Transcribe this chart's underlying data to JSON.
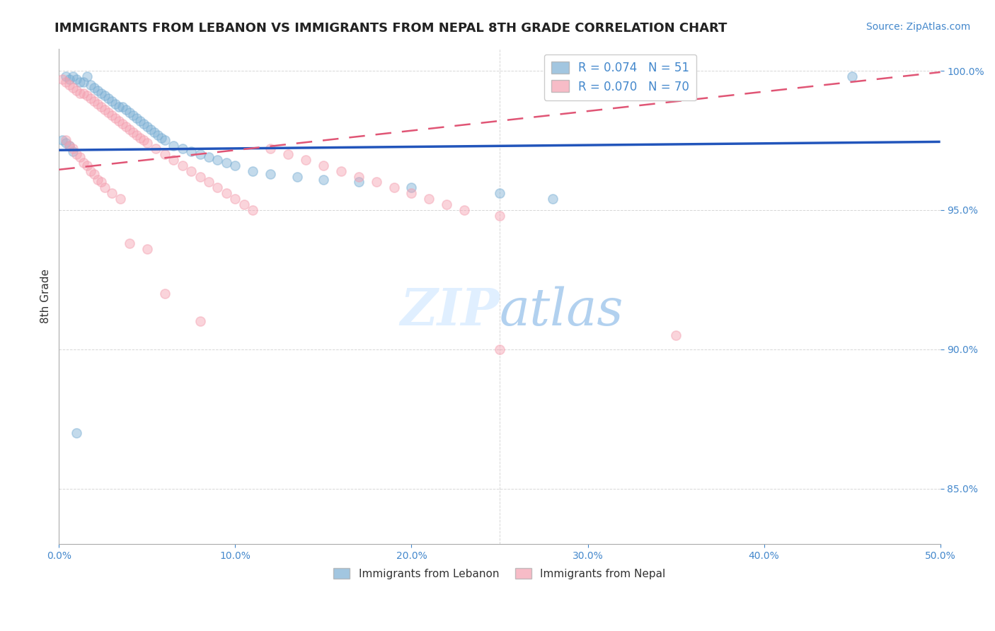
{
  "title": "IMMIGRANTS FROM LEBANON VS IMMIGRANTS FROM NEPAL 8TH GRADE CORRELATION CHART",
  "source": "Source: ZipAtlas.com",
  "ylabel": "8th Grade",
  "xlim": [
    0.0,
    0.5
  ],
  "ylim": [
    0.83,
    1.008
  ],
  "xticks": [
    0.0,
    0.1,
    0.2,
    0.3,
    0.4,
    0.5
  ],
  "xticklabels": [
    "0.0%",
    "10.0%",
    "20.0%",
    "30.0%",
    "40.0%",
    "50.0%"
  ],
  "yticks": [
    0.85,
    0.9,
    0.95,
    1.0
  ],
  "yticklabels": [
    "85.0%",
    "90.0%",
    "95.0%",
    "100.0%"
  ],
  "legend_blue_label": "R = 0.074   N = 51",
  "legend_pink_label": "R = 0.070   N = 70",
  "watermark_zip": "ZIP",
  "watermark_atlas": "atlas",
  "blue_color": "#7BAFD4",
  "pink_color": "#F4A0B0",
  "trend_blue_color": "#2255BB",
  "trend_pink_color": "#E05575",
  "blue_scatter_x": [
    0.004,
    0.006,
    0.008,
    0.01,
    0.012,
    0.014,
    0.016,
    0.018,
    0.02,
    0.022,
    0.024,
    0.026,
    0.028,
    0.03,
    0.032,
    0.034,
    0.036,
    0.038,
    0.04,
    0.042,
    0.044,
    0.046,
    0.048,
    0.05,
    0.052,
    0.054,
    0.056,
    0.058,
    0.06,
    0.065,
    0.07,
    0.075,
    0.08,
    0.085,
    0.09,
    0.095,
    0.1,
    0.11,
    0.12,
    0.135,
    0.15,
    0.17,
    0.2,
    0.25,
    0.28,
    0.45,
    0.002,
    0.004,
    0.006,
    0.008,
    0.01
  ],
  "blue_scatter_y": [
    0.998,
    0.997,
    0.998,
    0.997,
    0.996,
    0.996,
    0.998,
    0.995,
    0.994,
    0.993,
    0.992,
    0.991,
    0.99,
    0.989,
    0.988,
    0.987,
    0.987,
    0.986,
    0.985,
    0.984,
    0.983,
    0.982,
    0.981,
    0.98,
    0.979,
    0.978,
    0.977,
    0.976,
    0.975,
    0.973,
    0.972,
    0.971,
    0.97,
    0.969,
    0.968,
    0.967,
    0.966,
    0.964,
    0.963,
    0.962,
    0.961,
    0.96,
    0.958,
    0.956,
    0.954,
    0.998,
    0.975,
    0.974,
    0.973,
    0.971,
    0.87
  ],
  "pink_scatter_x": [
    0.002,
    0.004,
    0.006,
    0.008,
    0.01,
    0.012,
    0.014,
    0.016,
    0.018,
    0.02,
    0.022,
    0.024,
    0.026,
    0.028,
    0.03,
    0.032,
    0.034,
    0.036,
    0.038,
    0.04,
    0.042,
    0.044,
    0.046,
    0.048,
    0.05,
    0.055,
    0.06,
    0.065,
    0.07,
    0.075,
    0.08,
    0.085,
    0.09,
    0.095,
    0.1,
    0.105,
    0.11,
    0.12,
    0.13,
    0.14,
    0.15,
    0.16,
    0.17,
    0.18,
    0.19,
    0.2,
    0.21,
    0.22,
    0.23,
    0.25,
    0.004,
    0.006,
    0.008,
    0.01,
    0.012,
    0.014,
    0.016,
    0.018,
    0.02,
    0.022,
    0.024,
    0.026,
    0.03,
    0.035,
    0.04,
    0.05,
    0.06,
    0.08,
    0.25,
    0.35
  ],
  "pink_scatter_y": [
    0.997,
    0.996,
    0.995,
    0.994,
    0.993,
    0.992,
    0.992,
    0.991,
    0.99,
    0.989,
    0.988,
    0.987,
    0.986,
    0.985,
    0.984,
    0.983,
    0.982,
    0.981,
    0.98,
    0.979,
    0.978,
    0.977,
    0.976,
    0.975,
    0.974,
    0.972,
    0.97,
    0.968,
    0.966,
    0.964,
    0.962,
    0.96,
    0.958,
    0.956,
    0.954,
    0.952,
    0.95,
    0.972,
    0.97,
    0.968,
    0.966,
    0.964,
    0.962,
    0.96,
    0.958,
    0.956,
    0.954,
    0.952,
    0.95,
    0.948,
    0.975,
    0.973,
    0.972,
    0.97,
    0.969,
    0.967,
    0.966,
    0.964,
    0.963,
    0.961,
    0.96,
    0.958,
    0.956,
    0.954,
    0.938,
    0.936,
    0.92,
    0.91,
    0.9,
    0.905
  ],
  "blue_trend_x": [
    0.0,
    0.5
  ],
  "blue_trend_y": [
    0.9715,
    0.9745
  ],
  "pink_trend_x": [
    0.0,
    0.5
  ],
  "pink_trend_y": [
    0.9645,
    0.9995
  ],
  "grid_color": "#CCCCCC",
  "tick_color": "#4488CC",
  "title_fontsize": 13,
  "source_fontsize": 10,
  "marker_size": 90,
  "background_color": "#FFFFFF",
  "bottom_legend_labels": [
    "Immigrants from Lebanon",
    "Immigrants from Nepal"
  ]
}
